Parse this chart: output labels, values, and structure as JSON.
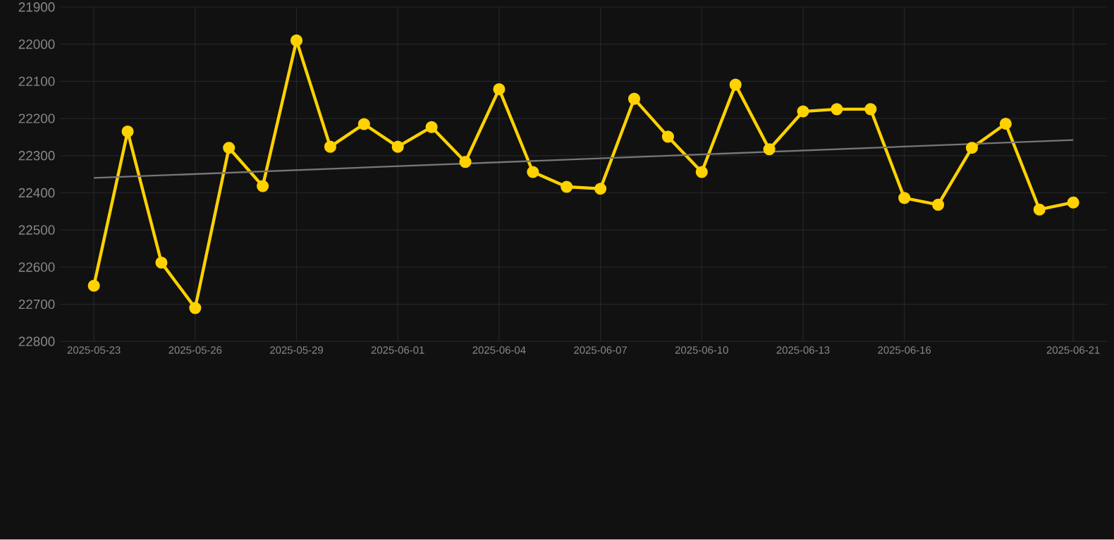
{
  "chart_data": {
    "type": "line",
    "x": [
      "2025-05-23",
      "2025-05-24",
      "2025-05-25",
      "2025-05-26",
      "2025-05-27",
      "2025-05-28",
      "2025-05-29",
      "2025-05-30",
      "2025-05-31",
      "2025-06-01",
      "2025-06-02",
      "2025-06-03",
      "2025-06-04",
      "2025-06-05",
      "2025-06-06",
      "2025-06-07",
      "2025-06-08",
      "2025-06-09",
      "2025-06-10",
      "2025-06-11",
      "2025-06-12",
      "2025-06-13",
      "2025-06-14",
      "2025-06-15",
      "2025-06-16",
      "2025-06-17",
      "2025-06-18",
      "2025-06-19",
      "2025-06-20",
      "2025-06-21"
    ],
    "series": [
      {
        "color": "#ffd200",
        "marker": "circle",
        "values": [
          22650,
          22235,
          22588,
          22710,
          22279,
          22382,
          21990,
          22276,
          22215,
          22276,
          22223,
          22317,
          22121,
          22344,
          22384,
          22389,
          22147,
          22249,
          22344,
          22109,
          22283,
          22181,
          22175,
          22175,
          22414,
          22432,
          22279,
          22214,
          22445,
          22426
        ]
      },
      {
        "type": "line",
        "color": "#777777",
        "marker": "none",
        "x": [
          "2025-05-23",
          "2025-06-21"
        ],
        "values": [
          22360,
          22258
        ]
      }
    ],
    "xlim": [
      "2025-05-22",
      "2025-06-22"
    ],
    "xticks": [
      "2025-05-23",
      "2025-05-26",
      "2025-05-29",
      "2025-06-01",
      "2025-06-04",
      "2025-06-07",
      "2025-06-10",
      "2025-06-13",
      "2025-06-16",
      "2025-06-21"
    ],
    "ylim": [
      22800,
      21900
    ],
    "yticks": [
      21900,
      22000,
      22100,
      22200,
      22300,
      22400,
      22500,
      22600,
      22700,
      22800
    ],
    "grid": true,
    "line_style": "solid"
  }
}
